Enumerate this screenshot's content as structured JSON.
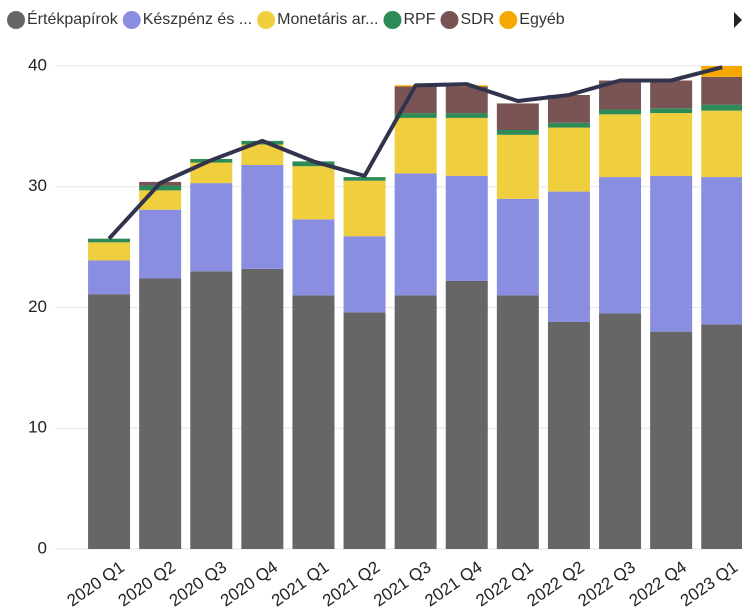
{
  "chart_data": {
    "type": "stacked_bar_line",
    "categories": [
      "2020 Q1",
      "2020 Q2",
      "2020 Q3",
      "2020 Q4",
      "2021 Q1",
      "2021 Q2",
      "2021 Q3",
      "2021 Q4",
      "2022 Q1",
      "2022 Q2",
      "2022 Q3",
      "2022 Q4",
      "2023 Q1"
    ],
    "series": [
      {
        "name": "Értékpapírok",
        "color": "#666666",
        "values": [
          21.1,
          22.4,
          23.0,
          23.2,
          21.0,
          19.6,
          21.0,
          22.2,
          21.0,
          18.8,
          19.5,
          18.0,
          18.6
        ]
      },
      {
        "name": "Készpénz és ...",
        "color": "#8a8ee0",
        "values": [
          2.8,
          5.7,
          7.3,
          8.6,
          6.3,
          6.3,
          10.1,
          8.7,
          8.0,
          10.8,
          11.3,
          12.9,
          12.2
        ]
      },
      {
        "name": "Monetáris ar...",
        "color": "#f0cf3f",
        "values": [
          1.5,
          1.6,
          1.7,
          1.7,
          4.4,
          4.6,
          4.6,
          4.8,
          5.3,
          5.3,
          5.2,
          5.2,
          5.5
        ]
      },
      {
        "name": "RPF",
        "color": "#2e8b57",
        "values": [
          0.3,
          0.4,
          0.3,
          0.3,
          0.4,
          0.3,
          0.4,
          0.4,
          0.4,
          0.4,
          0.4,
          0.4,
          0.5
        ]
      },
      {
        "name": "SDR",
        "color": "#7a5454",
        "values": [
          0,
          0.3,
          0,
          0,
          0,
          0,
          2.2,
          2.2,
          2.2,
          2.3,
          2.4,
          2.3,
          2.3
        ]
      },
      {
        "name": "Egyéb",
        "color": "#f5a800",
        "values": [
          0,
          0,
          0,
          0,
          0,
          0,
          0.1,
          0.1,
          0,
          0,
          0,
          0,
          0.9
        ]
      }
    ],
    "line": {
      "color": "#32344d",
      "values": [
        25.7,
        30.3,
        32.2,
        33.8,
        32.1,
        30.9,
        38.4,
        38.5,
        37.1,
        37.6,
        38.8,
        38.8,
        39.9
      ]
    },
    "ylim": [
      0,
      40
    ],
    "yticks": [
      0,
      10,
      20,
      30,
      40
    ],
    "grid": true
  }
}
